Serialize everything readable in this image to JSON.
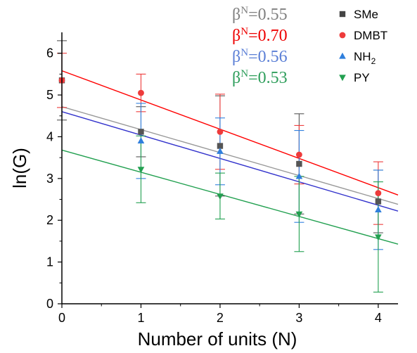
{
  "chart_data": {
    "type": "scatter",
    "title": "",
    "xlabel": "Number of units (N)",
    "ylabel": "ln(G)",
    "xlim": [
      0,
      4.25
    ],
    "ylim": [
      0,
      6.5
    ],
    "xticks": [
      0,
      1,
      2,
      3,
      4
    ],
    "yticks": [
      0,
      1,
      2,
      3,
      4,
      5,
      6
    ],
    "grid": false,
    "legend_position": "top-right",
    "series": [
      {
        "name": "SMe",
        "color": "#555555",
        "marker": "square",
        "x": [
          0,
          1,
          2,
          3,
          4
        ],
        "y": [
          5.35,
          4.12,
          3.78,
          3.35,
          2.45
        ],
        "err": [
          0.95,
          0.6,
          1.2,
          1.2,
          0.75
        ],
        "fit": {
          "intercept": 4.72,
          "slope": -0.55,
          "color": "#999999"
        }
      },
      {
        "name": "DMBT",
        "color": "#ee3b3b",
        "marker": "circle",
        "x": [
          0,
          1,
          2,
          3,
          4
        ],
        "y": [
          5.35,
          5.05,
          4.12,
          3.57,
          2.65
        ],
        "err": [
          0.65,
          0.45,
          0.9,
          0.7,
          0.75
        ],
        "fit": {
          "intercept": 5.58,
          "slope": -0.7,
          "color": "#ff0000"
        }
      },
      {
        "name": "NH2",
        "color": "#2f7fdd",
        "marker": "triangle-up",
        "x": [
          1,
          2,
          3,
          4
        ],
        "y": [
          3.9,
          3.65,
          3.05,
          2.25
        ],
        "err": [
          0.9,
          0.8,
          1.1,
          0.95
        ],
        "fit": {
          "intercept": 4.6,
          "slope": -0.56,
          "color": "#3333cc"
        }
      },
      {
        "name": "PY",
        "color": "#22a050",
        "marker": "triangle-down",
        "x": [
          1,
          2,
          3,
          4
        ],
        "y": [
          3.22,
          2.58,
          2.15,
          1.6
        ],
        "err": [
          0.8,
          0.55,
          0.9,
          1.32
        ],
        "fit": {
          "intercept": 3.68,
          "slope": -0.53,
          "color": "#22a050"
        }
      }
    ],
    "annotations": [
      {
        "prefix": "β",
        "sup": "N",
        "value": "=0.55",
        "color": "#808080"
      },
      {
        "prefix": "β",
        "sup": "N",
        "value": "=0.70",
        "color": "#ee0000"
      },
      {
        "prefix": "β",
        "sup": "N",
        "value": "=0.56",
        "color": "#5b7fd6"
      },
      {
        "prefix": "β",
        "sup": "N",
        "value": "=0.53",
        "color": "#2e9e5b"
      }
    ],
    "legend": [
      {
        "label": "SMe",
        "sub": "",
        "marker": "square",
        "color": "#444444"
      },
      {
        "label": "DMBT",
        "sub": "",
        "marker": "circle",
        "color": "#ee3b3b"
      },
      {
        "label": "NH",
        "sub": "2",
        "marker": "triangle-up",
        "color": "#2f7fdd"
      },
      {
        "label": "PY",
        "sub": "",
        "marker": "triangle-down",
        "color": "#22a050"
      }
    ]
  }
}
